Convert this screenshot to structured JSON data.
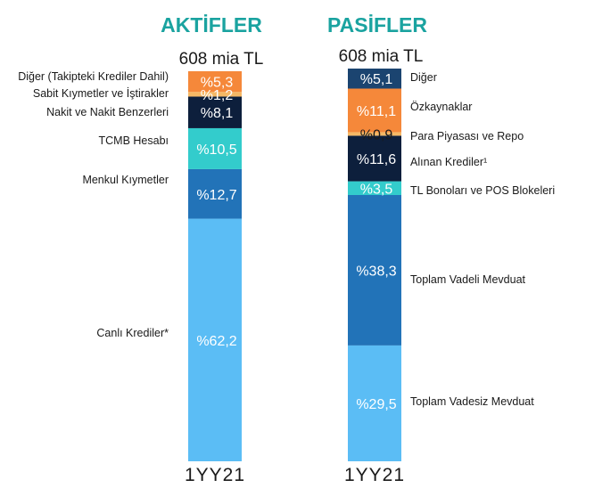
{
  "chart_data": [
    {
      "type": "bar",
      "title": "AKTİFLER",
      "total_label": "608 mia TL",
      "category": "1YY21",
      "colors": {
        "title": "#1aa3a0"
      },
      "segments": [
        {
          "name": "Canlı Krediler*",
          "value": 62.2,
          "label": "%62,2",
          "color": "#5bbdf5",
          "text_color": "#ffffff"
        },
        {
          "name": "Menkul Kıymetler",
          "value": 12.7,
          "label": "%12,7",
          "color": "#2273b8",
          "text_color": "#ffffff"
        },
        {
          "name": "TCMB Hesabı",
          "value": 10.5,
          "label": "%10,5",
          "color": "#33cccc",
          "text_color": "#ffffff"
        },
        {
          "name": "Nakit ve Nakit Benzerleri",
          "value": 8.1,
          "label": "%8,1",
          "color": "#0d1f3c",
          "text_color": "#ffffff"
        },
        {
          "name": "Sabit Kıymetler ve İştirakler",
          "value": 1.2,
          "label": "%1,2",
          "color": "#f5b865",
          "text_color": "#ffffff"
        },
        {
          "name": "Diğer (Takipteki Krediler Dahil)",
          "value": 5.3,
          "label": "%5,3",
          "color": "#f5883a",
          "text_color": "#ffffff"
        }
      ]
    },
    {
      "type": "bar",
      "title": "PASİFLER",
      "total_label": "608 mia TL",
      "category": "1YY21",
      "colors": {
        "title": "#1aa3a0"
      },
      "segments": [
        {
          "name": "Toplam Vadesiz Mevduat",
          "value": 29.5,
          "label": "%29,5",
          "color": "#5bbdf5",
          "text_color": "#ffffff"
        },
        {
          "name": "Toplam Vadeli Mevduat",
          "value": 38.3,
          "label": "%38,3",
          "color": "#2273b8",
          "text_color": "#ffffff"
        },
        {
          "name": "TL Bonoları ve POS Blokeleri",
          "value": 3.5,
          "label": "%3,5",
          "color": "#33cccc",
          "text_color": "#ffffff"
        },
        {
          "name": "Alınan Krediler¹",
          "value": 11.6,
          "label": "%11,6",
          "color": "#0d1f3c",
          "text_color": "#ffffff"
        },
        {
          "name": "Para Piyasası ve Repo",
          "value": 0.9,
          "label": "%0,9",
          "color": "#f5b865",
          "text_color": "#1a1a1a"
        },
        {
          "name": "Özkaynaklar",
          "value": 11.1,
          "label": "%11,1",
          "color": "#f5883a",
          "text_color": "#ffffff"
        },
        {
          "name": "Diğer",
          "value": 5.1,
          "label": "%5,1",
          "color": "#1b4470",
          "text_color": "#ffffff"
        }
      ]
    }
  ]
}
